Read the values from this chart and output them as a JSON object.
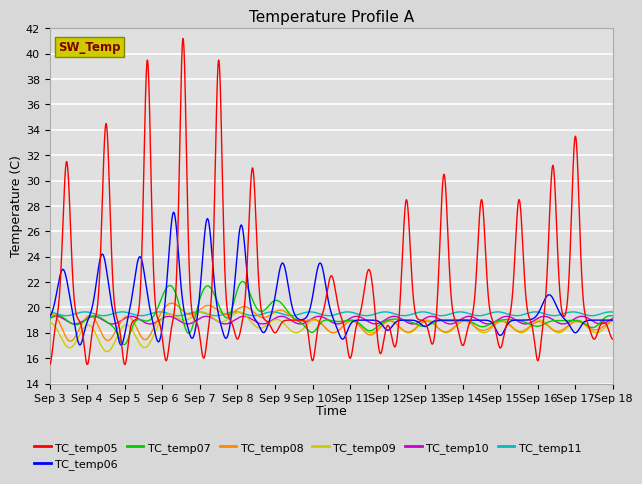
{
  "title": "Temperature Profile A",
  "xlabel": "Time",
  "ylabel": "Temperature (C)",
  "ylim": [
    14,
    42
  ],
  "yticks": [
    14,
    16,
    18,
    20,
    22,
    24,
    26,
    28,
    30,
    32,
    34,
    36,
    38,
    40,
    42
  ],
  "xtick_labels": [
    "Sep 3",
    "Sep 4",
    "Sep 5",
    "Sep 6",
    "Sep 7",
    "Sep 8",
    "Sep 9",
    "Sep 10",
    "Sep 11",
    "Sep 12",
    "Sep 13",
    "Sep 14",
    "Sep 15",
    "Sep 16",
    "Sep 17",
    "Sep 18"
  ],
  "series_colors": {
    "TC_temp05": "#ff0000",
    "TC_temp06": "#0000ff",
    "TC_temp07": "#00cc00",
    "TC_temp08": "#ff8800",
    "TC_temp09": "#cccc00",
    "TC_temp10": "#cc00cc",
    "TC_temp11": "#00bbbb"
  },
  "sw_temp_box_facecolor": "#cccc00",
  "sw_temp_box_edgecolor": "#888800",
  "sw_temp_text_color": "#800000",
  "fig_facecolor": "#d8d8d8",
  "plot_bg_color": "#e0e0e0",
  "grid_color": "#ffffff",
  "title_fontsize": 11,
  "axis_fontsize": 9,
  "tick_fontsize": 8
}
